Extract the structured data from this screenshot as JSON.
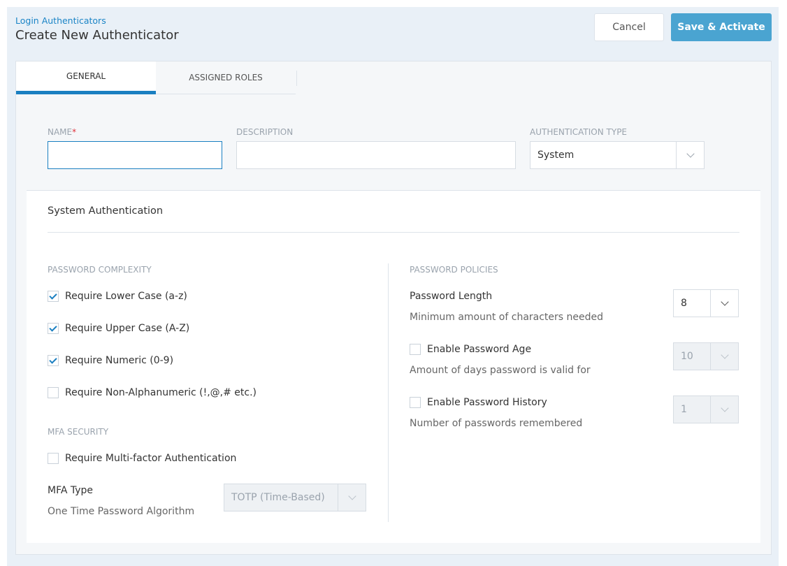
{
  "header": {
    "breadcrumb": "Login Authenticators",
    "title": "Create New Authenticator",
    "cancel_label": "Cancel",
    "save_label": "Save & Activate"
  },
  "tabs": [
    {
      "label": "GENERAL",
      "active": true
    },
    {
      "label": "ASSIGNED ROLES",
      "active": false
    }
  ],
  "form": {
    "name_label": "NAME",
    "required_mark": "*",
    "name_value": "",
    "description_label": "DESCRIPTION",
    "description_value": "",
    "auth_type_label": "AUTHENTICATION TYPE",
    "auth_type_value": "System"
  },
  "section": {
    "title": "System Authentication",
    "complexity": {
      "heading": "PASSWORD COMPLEXITY",
      "items": [
        {
          "label": "Require Lower Case (a-z)",
          "checked": true
        },
        {
          "label": "Require Upper Case (A-Z)",
          "checked": true
        },
        {
          "label": "Require Numeric (0-9)",
          "checked": true
        },
        {
          "label": "Require Non-Alphanumeric (!,@,# etc.)",
          "checked": false
        }
      ]
    },
    "mfa": {
      "heading": "MFA SECURITY",
      "require_label": "Require Multi-factor Authentication",
      "require_checked": false,
      "type_label": "MFA Type",
      "type_desc": "One Time Password Algorithm",
      "type_value": "TOTP (Time-Based)",
      "type_disabled": true
    },
    "policies": {
      "heading": "PASSWORD POLICIES",
      "length": {
        "label": "Password Length",
        "desc": "Minimum amount of characters needed",
        "value": "8"
      },
      "age": {
        "label": "Enable Password Age",
        "checked": false,
        "desc": "Amount of days password is valid for",
        "value": "10"
      },
      "history": {
        "label": "Enable Password History",
        "checked": false,
        "desc": "Number of passwords remembered",
        "value": "1"
      }
    }
  },
  "colors": {
    "accent": "#1a7fc1",
    "primary_button": "#4aa4d1",
    "page_bg": "#e9f0f7"
  }
}
